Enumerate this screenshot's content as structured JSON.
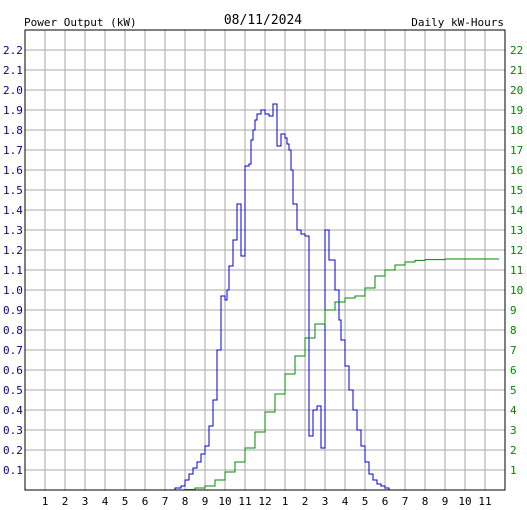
{
  "chart_data": {
    "type": "line",
    "title": "08/11/2024",
    "left_axis_label": "Power Output (kW)",
    "right_axis_label": "Daily kW-Hours",
    "colors": {
      "power": "#0000cc",
      "energy": "#008800",
      "grid": "#aaaaaa",
      "border": "#000000",
      "left_axis_text": "#000099",
      "right_axis_text": "#008800"
    },
    "grid": true,
    "x_range": [
      0,
      24
    ],
    "x_tick_labels": [
      "1",
      "2",
      "3",
      "4",
      "5",
      "6",
      "7",
      "8",
      "9",
      "10",
      "11",
      "12",
      "1",
      "2",
      "3",
      "4",
      "5",
      "6",
      "7",
      "8",
      "9",
      "10",
      "11"
    ],
    "left_ylim": [
      0,
      2.3
    ],
    "left_tick_labels": [
      "0.1",
      "0.2",
      "0.3",
      "0.4",
      "0.5",
      "0.6",
      "0.7",
      "0.8",
      "0.9",
      "1.0",
      "1.1",
      "1.2",
      "1.3",
      "1.4",
      "1.5",
      "1.6",
      "1.7",
      "1.8",
      "1.9",
      "2.0",
      "2.1",
      "2.2"
    ],
    "right_ylim": [
      0,
      23
    ],
    "right_tick_labels": [
      "1",
      "2",
      "3",
      "4",
      "5",
      "6",
      "7",
      "8",
      "9",
      "10",
      "11",
      "12",
      "13",
      "14",
      "15",
      "16",
      "17",
      "18",
      "19",
      "20",
      "21",
      "22"
    ],
    "series": [
      {
        "axis": "left",
        "x": [
          7.0,
          7.3,
          7.5,
          7.8,
          8.0,
          8.2,
          8.4,
          8.6,
          8.8,
          9.0,
          9.2,
          9.4,
          9.6,
          9.8,
          10.0,
          10.1,
          10.2,
          10.4,
          10.6,
          10.8,
          11.0,
          11.1,
          11.2,
          11.3,
          11.4,
          11.5,
          11.6,
          11.8,
          12.0,
          12.2,
          12.4,
          12.6,
          12.8,
          13.0,
          13.1,
          13.2,
          13.3,
          13.4,
          13.6,
          13.8,
          14.0,
          14.2,
          14.4,
          14.6,
          14.8,
          15.0,
          15.2,
          15.5,
          15.7,
          15.8,
          16.0,
          16.2,
          16.4,
          16.6,
          16.8,
          17.0,
          17.2,
          17.4,
          17.6,
          17.8,
          18.0,
          18.2,
          18.4,
          18.6,
          18.8,
          19.0,
          19.3,
          19.6,
          20.0,
          20.5
        ],
        "y": [
          0.0,
          0.0,
          0.01,
          0.02,
          0.05,
          0.08,
          0.11,
          0.14,
          0.18,
          0.22,
          0.32,
          0.45,
          0.7,
          0.97,
          0.95,
          1.0,
          1.12,
          1.25,
          1.43,
          1.17,
          1.62,
          1.62,
          1.63,
          1.75,
          1.8,
          1.85,
          1.88,
          1.9,
          1.88,
          1.87,
          1.93,
          1.72,
          1.78,
          1.76,
          1.73,
          1.7,
          1.6,
          1.43,
          1.3,
          1.28,
          1.27,
          0.27,
          0.4,
          0.42,
          0.21,
          1.3,
          1.15,
          1.0,
          0.85,
          0.75,
          0.62,
          0.5,
          0.4,
          0.3,
          0.22,
          0.14,
          0.08,
          0.05,
          0.03,
          0.02,
          0.01,
          0.0,
          0.0,
          0.0,
          0.0,
          0.0,
          0.0,
          0.0,
          0.0,
          0.0
        ]
      },
      {
        "axis": "right",
        "x": [
          7.5,
          8.0,
          8.5,
          9.0,
          9.5,
          10.0,
          10.5,
          11.0,
          11.5,
          12.0,
          12.5,
          13.0,
          13.5,
          14.0,
          14.5,
          15.0,
          15.5,
          16.0,
          16.5,
          17.0,
          17.5,
          18.0,
          18.5,
          19.0,
          19.5,
          20.0,
          21.0,
          22.0,
          23.0,
          23.7
        ],
        "y": [
          0.0,
          0.02,
          0.1,
          0.2,
          0.5,
          0.9,
          1.4,
          2.1,
          2.9,
          3.9,
          4.8,
          5.8,
          6.7,
          7.6,
          8.3,
          9.0,
          9.4,
          9.6,
          9.7,
          10.1,
          10.7,
          11.0,
          11.25,
          11.4,
          11.48,
          11.52,
          11.55,
          11.55,
          11.55,
          11.55
        ]
      }
    ]
  }
}
